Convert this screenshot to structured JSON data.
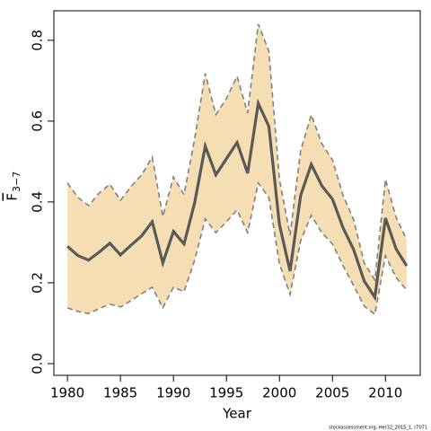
{
  "chart_data": {
    "type": "line",
    "xlabel": "Year",
    "ylabel": {
      "symbol": "F",
      "subscript": "3−7"
    },
    "footnote": "stockassessment.org, Her32_2015_1, r7071",
    "x": [
      1980,
      1981,
      1982,
      1983,
      1984,
      1985,
      1986,
      1987,
      1988,
      1989,
      1990,
      1991,
      1992,
      1993,
      1994,
      1995,
      1996,
      1997,
      1998,
      1999,
      2000,
      2001,
      2002,
      2003,
      2004,
      2005,
      2006,
      2007,
      2008,
      2009,
      2010,
      2011,
      2012
    ],
    "series": [
      {
        "color": "#444444",
        "role": "estimate",
        "values": [
          0.29,
          0.267,
          0.256,
          0.276,
          0.298,
          0.269,
          0.293,
          0.316,
          0.351,
          0.249,
          0.327,
          0.296,
          0.398,
          0.538,
          0.467,
          0.507,
          0.547,
          0.471,
          0.644,
          0.587,
          0.344,
          0.229,
          0.416,
          0.493,
          0.44,
          0.407,
          0.336,
          0.282,
          0.204,
          0.164,
          0.36,
          0.284,
          0.242
        ]
      },
      {
        "color": "#808080",
        "role": "upper",
        "values": [
          0.447,
          0.411,
          0.391,
          0.422,
          0.444,
          0.404,
          0.438,
          0.467,
          0.511,
          0.364,
          0.462,
          0.418,
          0.556,
          0.718,
          0.616,
          0.656,
          0.711,
          0.62,
          0.84,
          0.773,
          0.456,
          0.318,
          0.527,
          0.616,
          0.544,
          0.504,
          0.416,
          0.356,
          0.249,
          0.207,
          0.456,
          0.362,
          0.307
        ]
      },
      {
        "color": "#808080",
        "role": "lower",
        "values": [
          0.138,
          0.129,
          0.124,
          0.136,
          0.147,
          0.14,
          0.156,
          0.173,
          0.189,
          0.138,
          0.189,
          0.178,
          0.256,
          0.358,
          0.324,
          0.351,
          0.38,
          0.324,
          0.447,
          0.411,
          0.247,
          0.171,
          0.304,
          0.367,
          0.324,
          0.296,
          0.242,
          0.193,
          0.142,
          0.122,
          0.267,
          0.213,
          0.182
        ]
      }
    ],
    "band_color": "#f5deb3",
    "xlim": [
      1978.72,
      2013.28
    ],
    "xticks": [
      1980,
      1985,
      1990,
      1995,
      2000,
      2005,
      2010
    ],
    "ylim": [
      -0.029,
      0.873
    ],
    "yticks": [
      {
        "value": 0,
        "label": "0.0"
      },
      0.2,
      0.4,
      0.6,
      0.8
    ],
    "grid": false
  }
}
